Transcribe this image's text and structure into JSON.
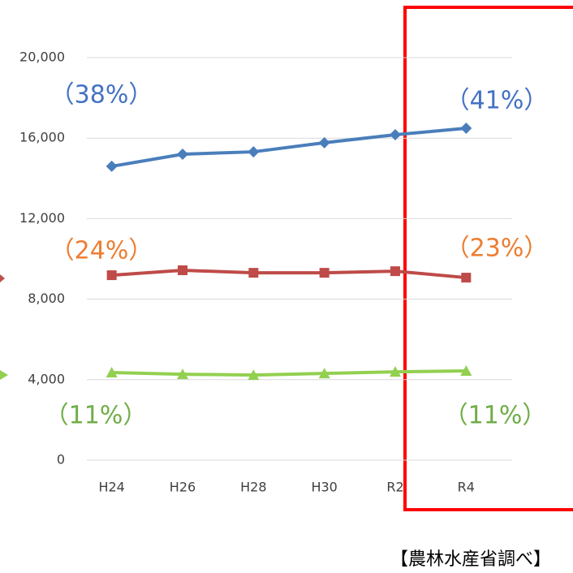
{
  "chart_data": {
    "type": "line",
    "categories": [
      "H24",
      "H26",
      "H28",
      "H30",
      "R2",
      "R4"
    ],
    "series": [
      {
        "color": "#4a7ebb",
        "marker": "diamond",
        "values": [
          14600,
          15200,
          15320,
          15770,
          16170,
          16490
        ]
      },
      {
        "color": "#be4b48",
        "marker": "square",
        "values": [
          9190,
          9435,
          9310,
          9310,
          9390,
          9070
        ]
      },
      {
        "color": "#92d050",
        "marker": "triangle",
        "values": [
          4355,
          4270,
          4230,
          4310,
          4390,
          4435
        ]
      }
    ],
    "ylim": [
      0,
      20000
    ],
    "yticks": [
      0,
      {
        "value": 4000,
        "label": "4,000"
      },
      {
        "value": 8000,
        "label": "8,000"
      },
      {
        "value": 12000,
        "label": "12,000"
      },
      {
        "value": 16000,
        "label": "16,000"
      },
      {
        "value": 20000,
        "label": "20,000"
      }
    ],
    "grid": true,
    "annotations": [
      {
        "text": "（38%）",
        "color": "#4472c4"
      },
      {
        "text": "（41%）",
        "color": "#4472c4"
      },
      {
        "text": "（24%）",
        "color": "#ed7d31"
      },
      {
        "text": "（23%）",
        "color": "#ed7d31"
      },
      {
        "text": "（11%）",
        "color": "#70ad47"
      },
      {
        "text": "（11%）",
        "color": "#70ad47"
      }
    ],
    "source": "【農林水産省調べ】"
  }
}
